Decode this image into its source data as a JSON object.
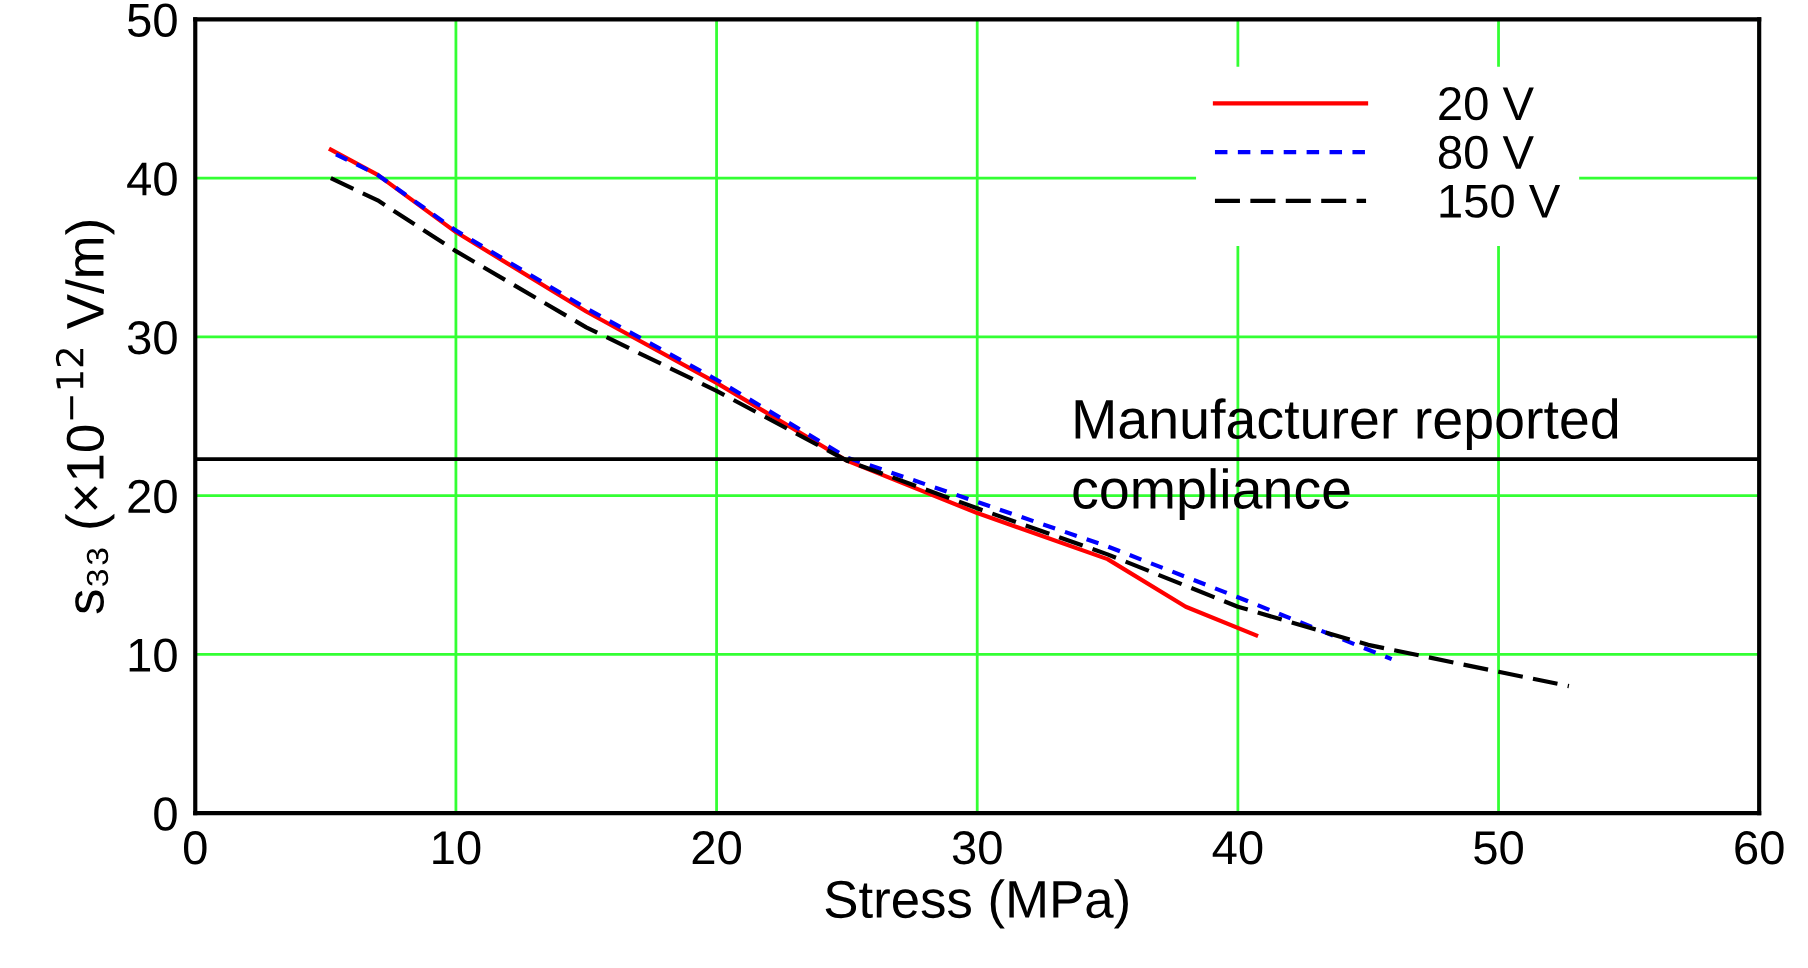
{
  "chart_data": {
    "type": "line",
    "xlabel": "Stress (MPa)",
    "ylabel": "s₃₃ (×10$^{−12}$ V/m)",
    "xlim": [
      0,
      60
    ],
    "xticks": [
      0,
      10,
      20,
      30,
      40,
      50,
      60
    ],
    "ylim": [
      0,
      50
    ],
    "yticks": [
      0,
      10,
      20,
      30,
      40,
      50
    ],
    "grid": true,
    "legend": "top right",
    "marker": "none",
    "series": [
      {
        "name": "20 V",
        "color": "#ff0000",
        "line_style": "solid",
        "x": [
          5.2,
          7,
          10,
          15,
          20,
          25,
          30,
          35,
          38,
          40.7
        ],
        "values": [
          41.8,
          40.2,
          36.6,
          31.6,
          27.1,
          22.2,
          18.9,
          16.0,
          13.0,
          11.2
        ]
      },
      {
        "name": "80 V",
        "color": "#0000ff",
        "line_style": "dotted",
        "x": [
          5.4,
          7,
          10,
          15,
          20,
          25,
          30,
          35,
          40,
          45.9
        ],
        "values": [
          41.5,
          40.2,
          36.7,
          31.8,
          27.3,
          22.4,
          19.6,
          16.8,
          13.6,
          9.7
        ]
      },
      {
        "name": "150 V",
        "color": "#000000",
        "line_style": "dashed",
        "x": [
          5.2,
          7,
          10,
          15,
          20,
          25,
          30,
          35,
          40,
          45,
          50,
          52.7
        ],
        "values": [
          40.0,
          38.6,
          35.4,
          30.6,
          26.6,
          22.2,
          19.2,
          16.3,
          13.0,
          10.6,
          8.9,
          8.0
        ]
      }
    ],
    "ref_lines": [
      {
        "axis": "y",
        "value": 22.3,
        "label": "Manufacturer reported\ncompliance",
        "color": "#000000"
      }
    ]
  }
}
